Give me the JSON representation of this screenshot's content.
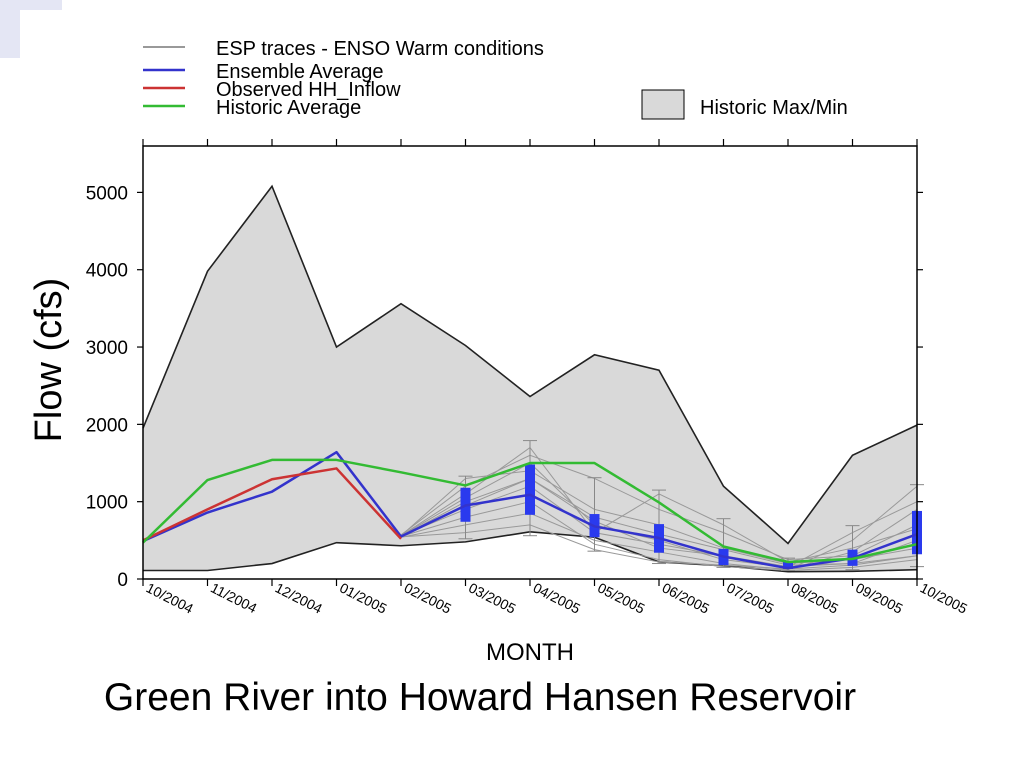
{
  "chart_data": {
    "type": "line",
    "xlabel": "MONTH",
    "ylabel": "Flow (cfs)",
    "ylim": [
      0,
      5600
    ],
    "yticks": [
      0,
      1000,
      2000,
      3000,
      4000,
      5000
    ],
    "categories": [
      "10/2004",
      "11/2004",
      "12/2004",
      "01/2005",
      "02/2005",
      "03/2005",
      "04/2005",
      "05/2005",
      "06/2005",
      "07/2005",
      "08/2005",
      "09/2005",
      "10/2005"
    ],
    "legend_placement": "top",
    "grid": false,
    "historic_max": [
      1950,
      3980,
      5080,
      3000,
      3560,
      3020,
      2360,
      2900,
      2700,
      1200,
      460,
      1600,
      1990
    ],
    "historic_min": [
      110,
      110,
      200,
      470,
      430,
      480,
      610,
      540,
      220,
      170,
      95,
      100,
      120
    ],
    "series": [
      {
        "name": "Ensemble Average",
        "color": "#3333cc",
        "values": [
          490,
          860,
          1130,
          1640,
          550,
          950,
          1090,
          680,
          530,
          290,
          140,
          270,
          580
        ]
      },
      {
        "name": "Observed HH_Inflow",
        "color": "#cc3333",
        "values": [
          500,
          900,
          1290,
          1430,
          520,
          null,
          null,
          null,
          null,
          null,
          null,
          null,
          null
        ]
      },
      {
        "name": "Historic Average",
        "color": "#33bb33",
        "values": [
          470,
          1280,
          1540,
          1540,
          1380,
          1210,
          1500,
          1500,
          990,
          420,
          220,
          260,
          450
        ]
      }
    ],
    "boxes": [
      {
        "x": "03/2005",
        "low": 740,
        "high": 1180,
        "min": 520,
        "max": 1330
      },
      {
        "x": "04/2005",
        "low": 830,
        "high": 1480,
        "min": 560,
        "max": 1790
      },
      {
        "x": "05/2005",
        "low": 540,
        "high": 840,
        "min": 360,
        "max": 1310
      },
      {
        "x": "06/2005",
        "low": 340,
        "high": 710,
        "min": 200,
        "max": 1150
      },
      {
        "x": "07/2005",
        "low": 180,
        "high": 390,
        "min": 150,
        "max": 780
      },
      {
        "x": "08/2005",
        "low": 130,
        "high": 230,
        "min": 110,
        "max": 270
      },
      {
        "x": "09/2005",
        "low": 170,
        "high": 380,
        "min": 120,
        "max": 690
      },
      {
        "x": "10/2005",
        "low": 320,
        "high": 880,
        "min": 160,
        "max": 1220
      }
    ],
    "esp_traces": [
      [
        550,
        950,
        1300,
        800,
        580,
        380,
        180,
        200,
        300
      ],
      [
        560,
        1100,
        1700,
        600,
        450,
        300,
        130,
        350,
        900
      ],
      [
        540,
        700,
        850,
        500,
        350,
        200,
        120,
        500,
        1200
      ],
      [
        560,
        1300,
        1400,
        900,
        700,
        400,
        200,
        250,
        400
      ],
      [
        550,
        800,
        1000,
        450,
        250,
        160,
        110,
        150,
        250
      ],
      [
        570,
        1200,
        1600,
        1300,
        900,
        600,
        250,
        300,
        700
      ],
      [
        545,
        600,
        700,
        380,
        220,
        180,
        130,
        180,
        300
      ],
      [
        555,
        1050,
        1500,
        700,
        500,
        250,
        150,
        600,
        1000
      ],
      [
        560,
        900,
        1200,
        600,
        1100,
        700,
        220,
        400,
        650
      ],
      [
        550,
        1000,
        1300,
        750,
        400,
        300,
        160,
        200,
        500
      ]
    ]
  },
  "legend": {
    "esp_label": "ESP traces - ENSO Warm conditions",
    "ensemble_label": "Ensemble Average",
    "observed_label": "Observed HH_Inflow",
    "historic_avg_label": "Historic Average",
    "maxmin_label": "Historic Max/Min"
  },
  "colors": {
    "fill": "#d9d9d9",
    "esp": "#999999",
    "ensemble": "#3333cc",
    "observed": "#cc3333",
    "historic_avg": "#33bb33",
    "box": "#2a3aee"
  },
  "caption": "Green River into Howard Hansen Reservoir"
}
